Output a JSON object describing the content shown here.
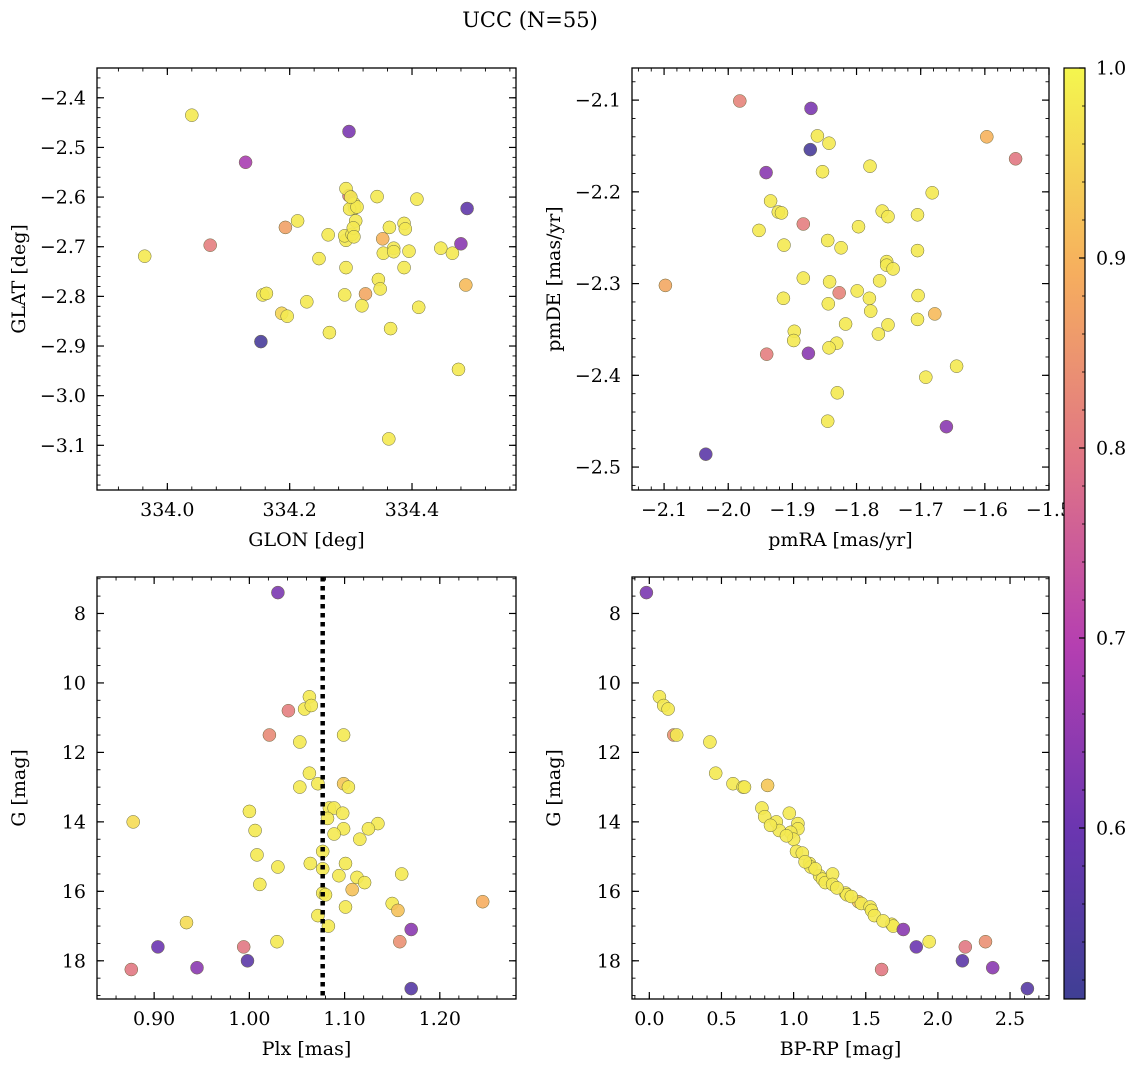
{
  "figure": {
    "title": "UCC (N=55)"
  },
  "colorbar": {
    "min": 0.51,
    "max": 1.0,
    "ticks": [
      0.6,
      0.7,
      0.8,
      0.9,
      1.0
    ],
    "colormap": "plasma"
  },
  "chart_data": [
    {
      "type": "scatter",
      "xlabel": "GLON [deg]",
      "ylabel": "GLAT [deg]",
      "xlim": [
        333.885,
        334.57
      ],
      "ylim": [
        -3.19,
        -2.34
      ],
      "xticks": [
        334.0,
        334.2,
        334.4
      ],
      "yticks": [
        -3.1,
        -3.0,
        -2.9,
        -2.8,
        -2.7,
        -2.6,
        -2.5,
        -2.4
      ],
      "points": [
        [
          334.04,
          -2.435,
          0.98
        ],
        [
          334.297,
          -2.468,
          0.62
        ],
        [
          334.128,
          -2.53,
          0.68
        ],
        [
          333.963,
          -2.719,
          0.98
        ],
        [
          334.07,
          -2.697,
          0.81
        ],
        [
          334.153,
          -2.891,
          0.53
        ],
        [
          334.297,
          -2.597,
          0.79
        ],
        [
          334.292,
          -2.583,
          0.98
        ],
        [
          334.305,
          -2.613,
          0.98
        ],
        [
          334.306,
          -2.622,
          0.98
        ],
        [
          334.298,
          -2.624,
          0.98
        ],
        [
          334.343,
          -2.599,
          0.98
        ],
        [
          334.408,
          -2.604,
          0.98
        ],
        [
          334.49,
          -2.623,
          0.58
        ],
        [
          334.213,
          -2.648,
          0.98
        ],
        [
          334.193,
          -2.661,
          0.87
        ],
        [
          334.263,
          -2.676,
          0.98
        ],
        [
          334.292,
          -2.687,
          0.98
        ],
        [
          334.29,
          -2.678,
          0.98
        ],
        [
          334.302,
          -2.675,
          0.98
        ],
        [
          334.308,
          -2.648,
          0.98
        ],
        [
          334.304,
          -2.662,
          0.98
        ],
        [
          334.363,
          -2.661,
          0.98
        ],
        [
          334.352,
          -2.684,
          0.9
        ],
        [
          334.387,
          -2.653,
          0.98
        ],
        [
          334.389,
          -2.664,
          0.98
        ],
        [
          334.37,
          -2.703,
          0.98
        ],
        [
          334.395,
          -2.709,
          0.98
        ],
        [
          334.353,
          -2.713,
          0.98
        ],
        [
          334.447,
          -2.703,
          0.98
        ],
        [
          334.466,
          -2.713,
          0.98
        ],
        [
          334.48,
          -2.694,
          0.64
        ],
        [
          334.248,
          -2.724,
          0.98
        ],
        [
          334.292,
          -2.742,
          0.98
        ],
        [
          334.387,
          -2.742,
          0.98
        ],
        [
          334.345,
          -2.766,
          0.98
        ],
        [
          334.348,
          -2.785,
          0.98
        ],
        [
          334.488,
          -2.777,
          0.91
        ],
        [
          334.156,
          -2.797,
          0.98
        ],
        [
          334.162,
          -2.794,
          0.98
        ],
        [
          334.29,
          -2.797,
          0.98
        ],
        [
          334.324,
          -2.795,
          0.88
        ],
        [
          334.228,
          -2.811,
          0.98
        ],
        [
          334.318,
          -2.819,
          0.98
        ],
        [
          334.411,
          -2.822,
          0.98
        ],
        [
          334.187,
          -2.834,
          0.95
        ],
        [
          334.196,
          -2.84,
          0.98
        ],
        [
          334.365,
          -2.865,
          0.98
        ],
        [
          334.265,
          -2.873,
          0.98
        ],
        [
          334.476,
          -2.947,
          0.98
        ],
        [
          334.362,
          -3.087,
          0.98
        ],
        [
          334.31,
          -2.62,
          0.98
        ],
        [
          334.37,
          -2.71,
          0.98
        ],
        [
          334.305,
          -2.68,
          0.98
        ],
        [
          334.3,
          -2.6,
          0.98
        ]
      ]
    },
    {
      "type": "scatter",
      "xlabel": "pmRA [mas/yr]",
      "ylabel": "pmDE [mas/yr]",
      "xlim": [
        -2.15,
        -1.5
      ],
      "ylim": [
        -2.525,
        -2.065
      ],
      "xticks": [
        -2.1,
        -2.0,
        -1.9,
        -1.8,
        -1.7,
        -1.6,
        -1.5
      ],
      "yticks": [
        -2.5,
        -2.4,
        -2.3,
        -2.2,
        -2.1
      ],
      "points": [
        [
          -1.982,
          -2.101,
          0.82
        ],
        [
          -1.871,
          -2.109,
          0.62
        ],
        [
          -1.872,
          -2.154,
          0.53
        ],
        [
          -1.861,
          -2.139,
          0.98
        ],
        [
          -1.843,
          -2.147,
          0.98
        ],
        [
          -1.597,
          -2.14,
          0.9
        ],
        [
          -1.552,
          -2.164,
          0.8
        ],
        [
          -1.853,
          -2.178,
          0.98
        ],
        [
          -1.941,
          -2.179,
          0.64
        ],
        [
          -1.779,
          -2.172,
          0.98
        ],
        [
          -1.682,
          -2.201,
          0.98
        ],
        [
          -1.934,
          -2.21,
          0.98
        ],
        [
          -1.922,
          -2.222,
          0.98
        ],
        [
          -1.917,
          -2.223,
          0.98
        ],
        [
          -1.76,
          -2.221,
          0.98
        ],
        [
          -1.751,
          -2.227,
          0.98
        ],
        [
          -1.705,
          -2.225,
          0.98
        ],
        [
          -1.883,
          -2.235,
          0.81
        ],
        [
          -1.952,
          -2.242,
          0.98
        ],
        [
          -1.797,
          -2.238,
          0.98
        ],
        [
          -1.913,
          -2.258,
          0.98
        ],
        [
          -1.845,
          -2.253,
          0.98
        ],
        [
          -1.824,
          -2.261,
          0.98
        ],
        [
          -1.705,
          -2.264,
          0.98
        ],
        [
          -1.753,
          -2.276,
          0.98
        ],
        [
          -1.753,
          -2.28,
          0.98
        ],
        [
          -1.743,
          -2.284,
          0.98
        ],
        [
          -2.098,
          -2.302,
          0.88
        ],
        [
          -1.883,
          -2.294,
          0.98
        ],
        [
          -1.842,
          -2.298,
          0.98
        ],
        [
          -1.764,
          -2.297,
          0.98
        ],
        [
          -1.827,
          -2.31,
          0.82
        ],
        [
          -1.799,
          -2.308,
          0.98
        ],
        [
          -1.914,
          -2.316,
          0.98
        ],
        [
          -1.78,
          -2.316,
          0.98
        ],
        [
          -1.844,
          -2.322,
          0.98
        ],
        [
          -1.704,
          -2.313,
          0.98
        ],
        [
          -1.778,
          -2.33,
          0.98
        ],
        [
          -1.705,
          -2.339,
          0.98
        ],
        [
          -1.678,
          -2.333,
          0.91
        ],
        [
          -1.817,
          -2.344,
          0.98
        ],
        [
          -1.751,
          -2.345,
          0.98
        ],
        [
          -1.897,
          -2.352,
          0.98
        ],
        [
          -1.766,
          -2.355,
          0.98
        ],
        [
          -1.898,
          -2.362,
          0.98
        ],
        [
          -1.831,
          -2.365,
          0.98
        ],
        [
          -1.843,
          -2.37,
          0.98
        ],
        [
          -1.94,
          -2.377,
          0.81
        ],
        [
          -1.875,
          -2.376,
          0.64
        ],
        [
          -1.644,
          -2.39,
          0.98
        ],
        [
          -1.692,
          -2.402,
          0.98
        ],
        [
          -1.83,
          -2.419,
          0.98
        ],
        [
          -1.845,
          -2.45,
          0.98
        ],
        [
          -1.66,
          -2.456,
          0.64
        ],
        [
          -2.035,
          -2.486,
          0.57
        ]
      ]
    },
    {
      "type": "scatter",
      "xlabel": "Plx [mas]",
      "ylabel": "G [mag]",
      "xlim": [
        0.84,
        1.28
      ],
      "ylim": [
        19.1,
        6.95
      ],
      "yinverted": true,
      "xticks": [
        0.9,
        1.0,
        1.1,
        1.2
      ],
      "yticks": [
        8,
        10,
        12,
        14,
        16,
        18
      ],
      "vline": 1.077,
      "points": [
        [
          1.03,
          7.4,
          0.62
        ],
        [
          1.063,
          10.4,
          0.98
        ],
        [
          1.058,
          10.75,
          0.98
        ],
        [
          1.065,
          10.65,
          0.98
        ],
        [
          1.041,
          10.8,
          0.81
        ],
        [
          1.021,
          11.5,
          0.83
        ],
        [
          1.099,
          11.5,
          0.98
        ],
        [
          1.053,
          11.7,
          0.98
        ],
        [
          1.063,
          12.6,
          0.98
        ],
        [
          1.072,
          12.9,
          0.98
        ],
        [
          1.099,
          12.9,
          0.93
        ],
        [
          1.104,
          13.0,
          0.98
        ],
        [
          1.053,
          13.0,
          0.98
        ],
        [
          1.084,
          13.6,
          0.98
        ],
        [
          1.089,
          13.6,
          0.98
        ],
        [
          1.098,
          13.75,
          0.98
        ],
        [
          1.082,
          13.9,
          0.98
        ],
        [
          1.0,
          13.7,
          0.98
        ],
        [
          1.135,
          14.05,
          0.98
        ],
        [
          0.878,
          14.0,
          0.96
        ],
        [
          1.099,
          14.2,
          0.98
        ],
        [
          1.125,
          14.2,
          0.98
        ],
        [
          1.006,
          14.25,
          0.98
        ],
        [
          1.089,
          14.35,
          0.98
        ],
        [
          1.116,
          14.5,
          0.98
        ],
        [
          1.077,
          14.85,
          0.98
        ],
        [
          1.008,
          14.95,
          0.98
        ],
        [
          1.101,
          15.2,
          0.98
        ],
        [
          1.064,
          15.2,
          0.98
        ],
        [
          1.077,
          15.35,
          0.98
        ],
        [
          1.03,
          15.3,
          0.98
        ],
        [
          1.094,
          15.55,
          0.98
        ],
        [
          1.16,
          15.5,
          0.98
        ],
        [
          1.113,
          15.6,
          0.98
        ],
        [
          1.121,
          15.75,
          0.98
        ],
        [
          1.011,
          15.8,
          0.98
        ],
        [
          1.108,
          15.95,
          0.92
        ],
        [
          1.077,
          16.05,
          0.98
        ],
        [
          1.08,
          16.1,
          0.98
        ],
        [
          1.15,
          16.35,
          0.98
        ],
        [
          1.101,
          16.45,
          0.98
        ],
        [
          1.156,
          16.55,
          0.92
        ],
        [
          1.245,
          16.3,
          0.89
        ],
        [
          1.072,
          16.7,
          0.98
        ],
        [
          0.934,
          16.9,
          0.96
        ],
        [
          1.083,
          17.0,
          0.98
        ],
        [
          1.17,
          17.1,
          0.64
        ],
        [
          1.029,
          17.45,
          0.98
        ],
        [
          1.158,
          17.45,
          0.84
        ],
        [
          0.904,
          17.6,
          0.6
        ],
        [
          0.994,
          17.6,
          0.8
        ],
        [
          0.998,
          18.0,
          0.57
        ],
        [
          0.876,
          18.25,
          0.8
        ],
        [
          0.945,
          18.2,
          0.64
        ],
        [
          1.17,
          18.8,
          0.56
        ]
      ]
    },
    {
      "type": "scatter",
      "xlabel": "BP-RP [mag]",
      "ylabel": "G [mag]",
      "xlim": [
        -0.12,
        2.77
      ],
      "ylim": [
        19.1,
        6.95
      ],
      "yinverted": true,
      "xticks": [
        0.0,
        0.5,
        1.0,
        1.5,
        2.0,
        2.5
      ],
      "yticks": [
        8,
        10,
        12,
        14,
        16,
        18
      ],
      "points": [
        [
          -0.02,
          7.4,
          0.62
        ],
        [
          0.07,
          10.4,
          0.98
        ],
        [
          0.1,
          10.65,
          0.98
        ],
        [
          0.13,
          10.75,
          0.98
        ],
        [
          0.17,
          11.5,
          0.84
        ],
        [
          0.19,
          11.5,
          0.98
        ],
        [
          0.42,
          11.7,
          0.98
        ],
        [
          0.46,
          12.6,
          0.98
        ],
        [
          0.58,
          12.9,
          0.98
        ],
        [
          0.65,
          13.0,
          0.98
        ],
        [
          0.66,
          13.0,
          0.98
        ],
        [
          0.82,
          12.95,
          0.93
        ],
        [
          0.78,
          13.6,
          0.98
        ],
        [
          0.8,
          13.85,
          0.98
        ],
        [
          0.88,
          14.0,
          0.98
        ],
        [
          0.97,
          13.75,
          0.98
        ],
        [
          1.03,
          14.05,
          0.98
        ],
        [
          1.03,
          14.2,
          0.98
        ],
        [
          0.98,
          14.3,
          0.98
        ],
        [
          0.9,
          14.25,
          0.98
        ],
        [
          1.0,
          14.5,
          0.98
        ],
        [
          1.02,
          14.85,
          0.98
        ],
        [
          1.06,
          14.9,
          0.98
        ],
        [
          1.11,
          15.2,
          0.98
        ],
        [
          1.12,
          15.3,
          0.98
        ],
        [
          1.18,
          15.55,
          0.98
        ],
        [
          1.2,
          15.65,
          0.98
        ],
        [
          1.22,
          15.75,
          0.98
        ],
        [
          1.27,
          15.5,
          0.98
        ],
        [
          1.27,
          15.8,
          0.98
        ],
        [
          1.36,
          16.05,
          0.98
        ],
        [
          1.37,
          16.1,
          0.98
        ],
        [
          1.45,
          16.3,
          0.92
        ],
        [
          1.47,
          16.35,
          0.98
        ],
        [
          1.53,
          16.45,
          0.98
        ],
        [
          1.54,
          16.55,
          0.98
        ],
        [
          1.56,
          16.7,
          0.98
        ],
        [
          1.68,
          16.95,
          0.98
        ],
        [
          1.69,
          17.0,
          0.98
        ],
        [
          1.76,
          17.1,
          0.64
        ],
        [
          1.94,
          17.45,
          0.98
        ],
        [
          1.85,
          17.6,
          0.6
        ],
        [
          2.19,
          17.6,
          0.8
        ],
        [
          2.33,
          17.45,
          0.84
        ],
        [
          2.17,
          18.0,
          0.57
        ],
        [
          2.38,
          18.2,
          0.64
        ],
        [
          1.61,
          18.25,
          0.8
        ],
        [
          2.62,
          18.8,
          0.56
        ],
        [
          1.15,
          15.35,
          0.98
        ],
        [
          1.08,
          15.15,
          0.98
        ],
        [
          0.95,
          14.4,
          0.98
        ],
        [
          1.3,
          15.9,
          0.98
        ],
        [
          0.84,
          14.1,
          0.98
        ],
        [
          1.4,
          16.15,
          0.98
        ],
        [
          1.62,
          16.85,
          0.98
        ]
      ]
    }
  ]
}
